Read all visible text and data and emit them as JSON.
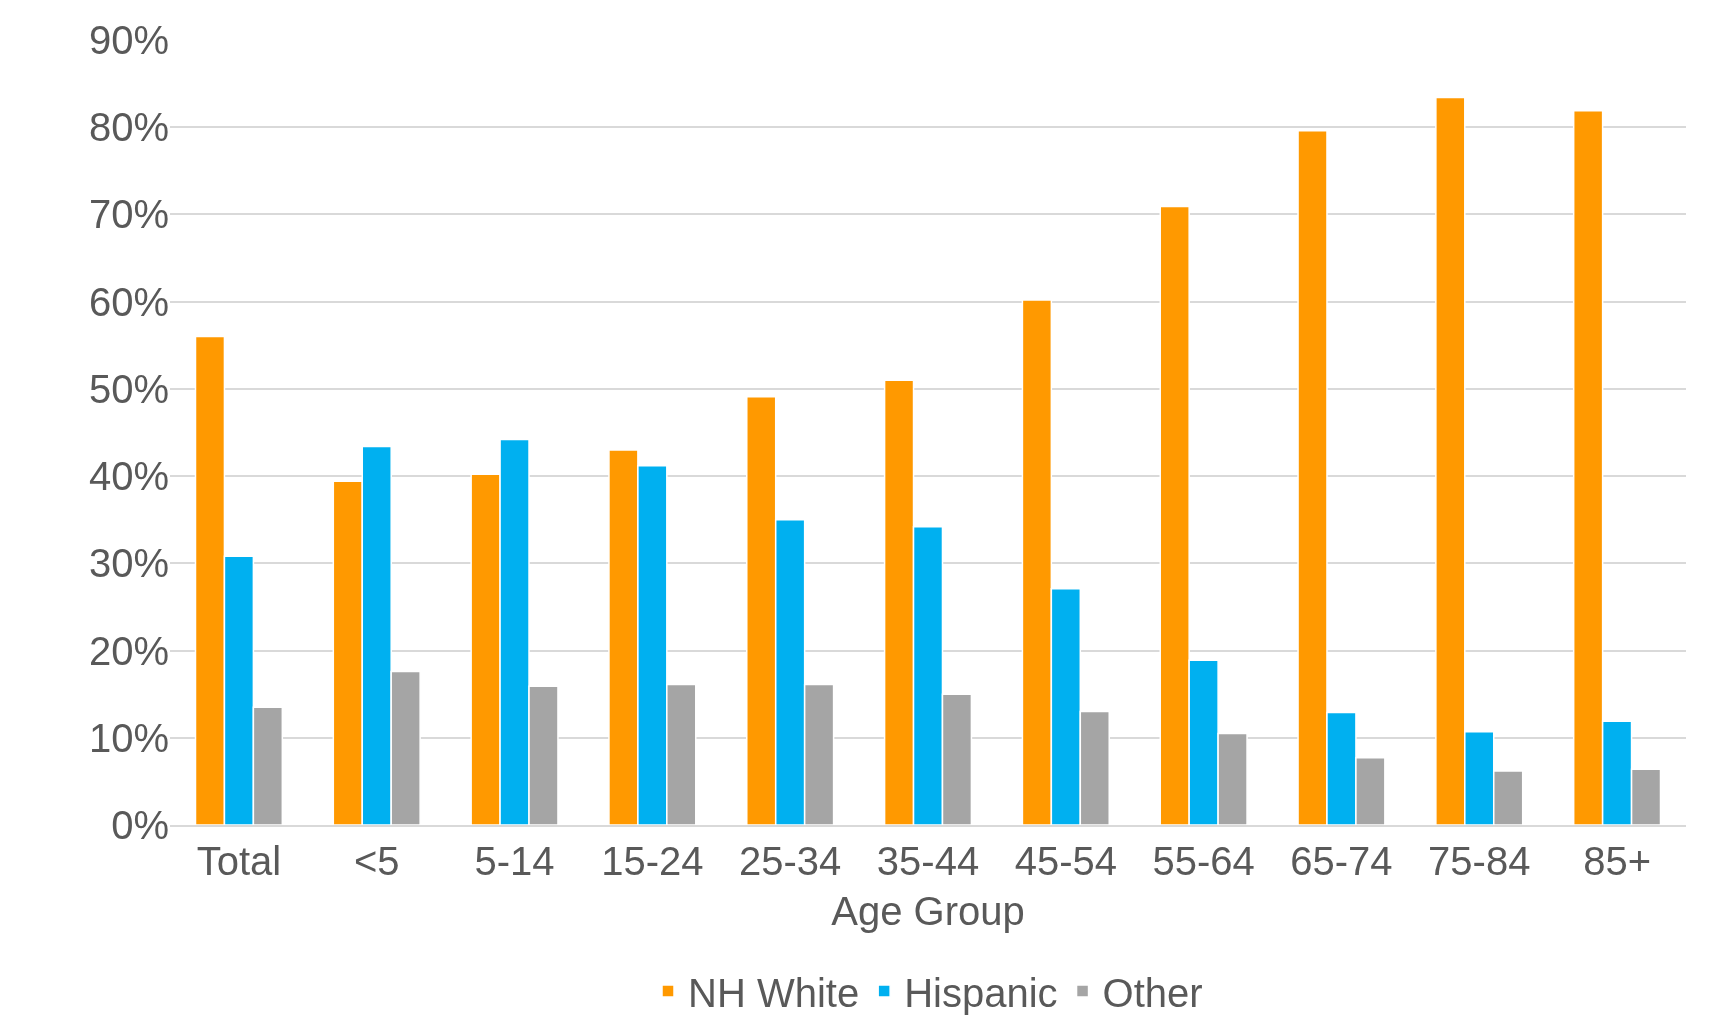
{
  "chart_data": {
    "type": "bar",
    "xlabel": "Age Group",
    "categories": [
      "Total",
      "<5",
      "5-14",
      "15-24",
      "25-34",
      "35-44",
      "45-54",
      "55-64",
      "65-74",
      "75-84",
      "85+"
    ],
    "series": [
      {
        "name": "NH White",
        "color": "#ff9900",
        "values": [
          56,
          39.4,
          40.2,
          43,
          49.1,
          51,
          60.2,
          70.9,
          79.6,
          83.4,
          81.9
        ]
      },
      {
        "name": "Hispanic",
        "color": "#00b0f0",
        "values": [
          30.8,
          43.4,
          44.2,
          41.2,
          35,
          34.2,
          27.1,
          18.9,
          12.9,
          10.7,
          11.9
        ]
      },
      {
        "name": "Other",
        "color": "#a5a5a5",
        "values": [
          13.5,
          17.6,
          15.9,
          16.1,
          16.1,
          15,
          13,
          10.5,
          7.7,
          6.2,
          6.4
        ]
      }
    ],
    "ylim": [
      0,
      90
    ],
    "yticks": [
      {
        "value": 0,
        "label": "0%"
      },
      {
        "value": 10,
        "label": "10%"
      },
      {
        "value": 20,
        "label": "20%"
      },
      {
        "value": 30,
        "label": "30%"
      },
      {
        "value": 40,
        "label": "40%"
      },
      {
        "value": 50,
        "label": "50%"
      },
      {
        "value": 60,
        "label": "60%"
      },
      {
        "value": 70,
        "label": "70%"
      },
      {
        "value": 80,
        "label": "80%"
      },
      {
        "value": 90,
        "label": "90%"
      }
    ],
    "grid": "y",
    "legend": "bottom"
  }
}
